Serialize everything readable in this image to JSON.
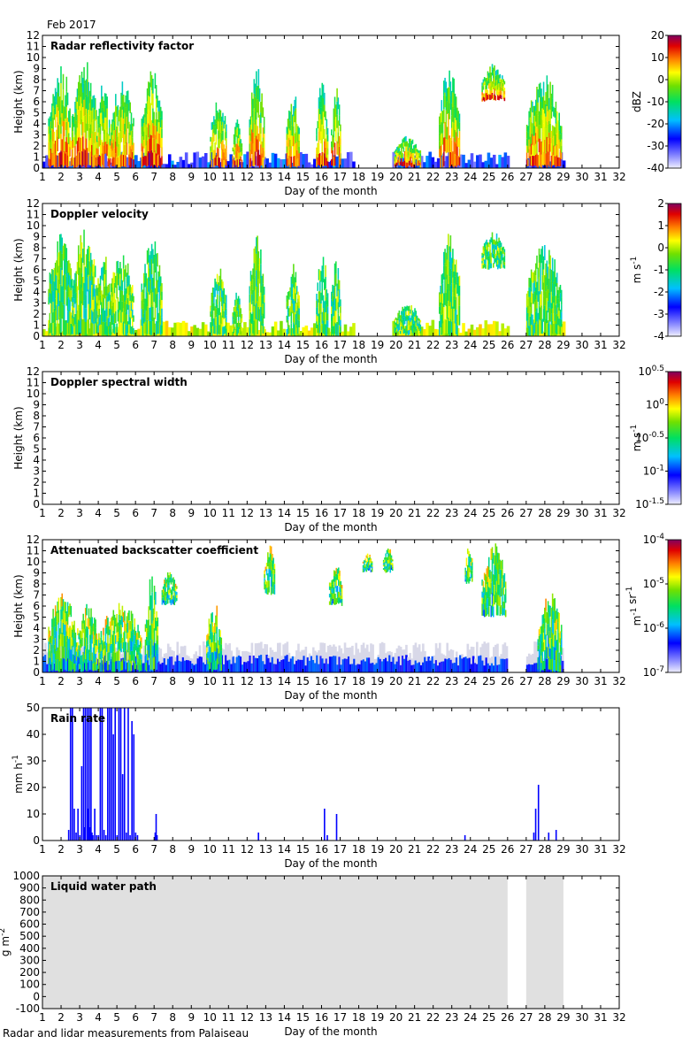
{
  "figure": {
    "header": "Feb 2017",
    "footer": "Radar and lidar measurements from Palaiseau"
  },
  "chart_data": [
    {
      "type": "heatmap",
      "title": "Radar reflectivity factor",
      "xlabel": "Day of the month",
      "ylabel": "Height (km)",
      "xlim": [
        1,
        32
      ],
      "ylim": [
        0,
        12
      ],
      "xticks": [
        "1",
        "2",
        "3",
        "4",
        "5",
        "6",
        "7",
        "8",
        "9",
        "10",
        "11",
        "12",
        "13",
        "14",
        "15",
        "16",
        "17",
        "18",
        "19",
        "20",
        "21",
        "22",
        "23",
        "24",
        "25",
        "26",
        "27",
        "28",
        "29",
        "30",
        "31",
        "32"
      ],
      "yticks": [
        "0",
        "1",
        "2",
        "3",
        "4",
        "5",
        "6",
        "7",
        "8",
        "9",
        "10",
        "11",
        "12"
      ],
      "colorbar": {
        "label": "dBZ",
        "ticks": [
          "20",
          "10",
          "0",
          "-10",
          "-20",
          "-30",
          "-40"
        ],
        "range": [
          -40,
          20
        ]
      },
      "data_coverage_days": [
        [
          1,
          17.7
        ],
        [
          19.8,
          26
        ],
        [
          27,
          29
        ]
      ],
      "cloud_columns": [
        {
          "x": [
            1.3,
            2.6
          ],
          "top": 9.5,
          "base": 0
        },
        {
          "x": [
            2.6,
            3.9
          ],
          "top": 9.8,
          "base": 0
        },
        {
          "x": [
            3.9,
            4.6
          ],
          "top": 8.0,
          "base": 0
        },
        {
          "x": [
            4.6,
            5.9
          ],
          "top": 8.0,
          "base": 0
        },
        {
          "x": [
            6.3,
            7.4
          ],
          "top": 9.2,
          "base": 0
        },
        {
          "x": [
            10.0,
            10.9
          ],
          "top": 6.5,
          "base": 0
        },
        {
          "x": [
            11.2,
            11.7
          ],
          "top": 4.5,
          "base": 0
        },
        {
          "x": [
            12.1,
            12.9
          ],
          "top": 9.2,
          "base": 0
        },
        {
          "x": [
            14.1,
            14.8
          ],
          "top": 7.0,
          "base": 0
        },
        {
          "x": [
            15.7,
            16.3
          ],
          "top": 8.0,
          "base": 0
        },
        {
          "x": [
            16.5,
            17.0
          ],
          "top": 7.5,
          "base": 0
        },
        {
          "x": [
            19.9,
            21.3
          ],
          "top": 3.0,
          "base": 0
        },
        {
          "x": [
            22.3,
            23.4
          ],
          "top": 9.5,
          "base": 0
        },
        {
          "x": [
            24.6,
            25.8
          ],
          "top": 9.5,
          "base": 6.0
        },
        {
          "x": [
            27.0,
            28.9
          ],
          "top": 8.5,
          "base": 0
        }
      ]
    },
    {
      "type": "heatmap",
      "title": "Doppler velocity",
      "xlabel": "Day of the month",
      "ylabel": "Height (km)",
      "xlim": [
        1,
        32
      ],
      "ylim": [
        0,
        12
      ],
      "xticks": [
        "1",
        "2",
        "3",
        "4",
        "5",
        "6",
        "7",
        "8",
        "9",
        "10",
        "11",
        "12",
        "13",
        "14",
        "15",
        "16",
        "17",
        "18",
        "19",
        "20",
        "21",
        "22",
        "23",
        "24",
        "25",
        "26",
        "27",
        "28",
        "29",
        "30",
        "31",
        "32"
      ],
      "yticks": [
        "0",
        "1",
        "2",
        "3",
        "4",
        "5",
        "6",
        "7",
        "8",
        "9",
        "10",
        "11",
        "12"
      ],
      "colorbar": {
        "label": "m s-1",
        "ticks": [
          "2",
          "1",
          "0",
          "-1",
          "-2",
          "-3",
          "-4"
        ],
        "range": [
          -4,
          2
        ]
      },
      "data_coverage_days": [
        [
          1,
          17.7
        ],
        [
          19.8,
          26
        ],
        [
          27,
          29
        ]
      ],
      "cloud_columns": [
        {
          "x": [
            1.3,
            2.6
          ],
          "top": 9.5,
          "base": 0
        },
        {
          "x": [
            2.6,
            3.9
          ],
          "top": 9.8,
          "base": 0
        },
        {
          "x": [
            3.9,
            4.6
          ],
          "top": 8.0,
          "base": 0
        },
        {
          "x": [
            4.6,
            5.9
          ],
          "top": 8.0,
          "base": 0
        },
        {
          "x": [
            6.3,
            7.4
          ],
          "top": 9.2,
          "base": 0
        },
        {
          "x": [
            10.0,
            10.9
          ],
          "top": 6.5,
          "base": 0
        },
        {
          "x": [
            11.2,
            11.7
          ],
          "top": 4.5,
          "base": 0
        },
        {
          "x": [
            12.1,
            12.9
          ],
          "top": 9.2,
          "base": 0
        },
        {
          "x": [
            14.1,
            14.8
          ],
          "top": 7.0,
          "base": 0
        },
        {
          "x": [
            15.7,
            16.3
          ],
          "top": 8.0,
          "base": 0
        },
        {
          "x": [
            16.5,
            17.0
          ],
          "top": 7.5,
          "base": 0
        },
        {
          "x": [
            19.9,
            21.3
          ],
          "top": 3.0,
          "base": 0
        },
        {
          "x": [
            22.3,
            23.4
          ],
          "top": 9.5,
          "base": 0
        },
        {
          "x": [
            24.6,
            25.8
          ],
          "top": 9.5,
          "base": 6.0
        },
        {
          "x": [
            27.0,
            28.9
          ],
          "top": 8.5,
          "base": 0
        }
      ]
    },
    {
      "type": "heatmap",
      "title": "Doppler spectral width",
      "xlabel": "Day of the month",
      "ylabel": "Height (km)",
      "xlim": [
        1,
        32
      ],
      "ylim": [
        0,
        12
      ],
      "xticks": [
        "1",
        "2",
        "3",
        "4",
        "5",
        "6",
        "7",
        "8",
        "9",
        "10",
        "11",
        "12",
        "13",
        "14",
        "15",
        "16",
        "17",
        "18",
        "19",
        "20",
        "21",
        "22",
        "23",
        "24",
        "25",
        "26",
        "27",
        "28",
        "29",
        "30",
        "31",
        "32"
      ],
      "yticks": [
        "0",
        "1",
        "2",
        "3",
        "4",
        "5",
        "6",
        "7",
        "8",
        "9",
        "10",
        "11",
        "12"
      ],
      "colorbar": {
        "label": "m s-1",
        "ticks": [
          "10^0.5",
          "10^0",
          "10^-0.5",
          "10^-1",
          "10^-1.5"
        ],
        "range": [
          -1.5,
          0.5
        ],
        "log": true
      },
      "data_coverage_days": [],
      "cloud_columns": []
    },
    {
      "type": "heatmap",
      "title": "Attenuated backscatter coefficient",
      "xlabel": "Day of the month",
      "ylabel": "Height (km)",
      "xlim": [
        1,
        32
      ],
      "ylim": [
        0,
        12
      ],
      "xticks": [
        "1",
        "2",
        "3",
        "4",
        "5",
        "6",
        "7",
        "8",
        "9",
        "10",
        "11",
        "12",
        "13",
        "14",
        "15",
        "16",
        "17",
        "18",
        "19",
        "20",
        "21",
        "22",
        "23",
        "24",
        "25",
        "26",
        "27",
        "28",
        "29",
        "30",
        "31",
        "32"
      ],
      "yticks": [
        "0",
        "1",
        "2",
        "3",
        "4",
        "5",
        "6",
        "7",
        "8",
        "9",
        "10",
        "11",
        "12"
      ],
      "colorbar": {
        "label": "m-1 sr-1",
        "ticks": [
          "10^-4",
          "10^-5",
          "10^-6",
          "10^-7"
        ],
        "range": [
          -7,
          -4
        ],
        "log": true
      },
      "data_coverage_days": [
        [
          1,
          26
        ],
        [
          27,
          29
        ]
      ],
      "cloud_columns": [
        {
          "x": [
            1.3,
            2.8
          ],
          "top": 7.5,
          "base": 0
        },
        {
          "x": [
            2.8,
            4.0
          ],
          "top": 6.5,
          "base": 0
        },
        {
          "x": [
            4.0,
            6.3
          ],
          "top": 6.5,
          "base": 0
        },
        {
          "x": [
            6.5,
            7.2
          ],
          "top": 9.0,
          "base": 0
        },
        {
          "x": [
            7.4,
            8.2
          ],
          "top": 9.5,
          "base": 6.0
        },
        {
          "x": [
            9.8,
            10.6
          ],
          "top": 6.5,
          "base": 0
        },
        {
          "x": [
            12.9,
            13.5
          ],
          "top": 11.5,
          "base": 7.0
        },
        {
          "x": [
            16.4,
            17.1
          ],
          "top": 10.0,
          "base": 6.0
        },
        {
          "x": [
            18.2,
            18.7
          ],
          "top": 11.0,
          "base": 9.0
        },
        {
          "x": [
            19.3,
            19.8
          ],
          "top": 11.5,
          "base": 9.0
        },
        {
          "x": [
            23.7,
            24.1
          ],
          "top": 11.5,
          "base": 8.0
        },
        {
          "x": [
            24.6,
            25.9
          ],
          "top": 11.8,
          "base": 5.0
        },
        {
          "x": [
            27.6,
            28.9
          ],
          "top": 7.5,
          "base": 0
        }
      ]
    },
    {
      "type": "bar",
      "title": "Rain rate",
      "xlabel": "Day of the month",
      "ylabel": "mm h-1",
      "xlim": [
        1,
        32
      ],
      "ylim": [
        0,
        50
      ],
      "xticks": [
        "1",
        "2",
        "3",
        "4",
        "5",
        "6",
        "7",
        "8",
        "9",
        "10",
        "11",
        "12",
        "13",
        "14",
        "15",
        "16",
        "17",
        "18",
        "19",
        "20",
        "21",
        "22",
        "23",
        "24",
        "25",
        "26",
        "27",
        "28",
        "29",
        "30",
        "31",
        "32"
      ],
      "yticks": [
        "0",
        "10",
        "20",
        "30",
        "40",
        "50"
      ],
      "x": [
        2.4,
        2.5,
        2.6,
        2.7,
        2.8,
        2.9,
        3.0,
        3.1,
        3.2,
        3.25,
        3.3,
        3.4,
        3.45,
        3.5,
        3.55,
        3.6,
        3.65,
        3.7,
        3.8,
        3.9,
        4.0,
        4.1,
        4.2,
        4.3,
        4.4,
        4.5,
        4.6,
        4.7,
        4.8,
        4.9,
        5.0,
        5.1,
        5.2,
        5.3,
        5.4,
        5.5,
        5.6,
        5.7,
        5.8,
        5.9,
        6.0,
        6.1,
        7.05,
        7.1,
        7.15,
        12.6,
        16.15,
        16.3,
        16.8,
        23.7,
        27.4,
        27.5,
        27.65,
        28.2,
        28.6
      ],
      "values": [
        4,
        50,
        50,
        12,
        3,
        12,
        2,
        28,
        50,
        5,
        50,
        50,
        12,
        50,
        5,
        50,
        3,
        2,
        12,
        2,
        2,
        50,
        50,
        4,
        2,
        50,
        50,
        50,
        40,
        50,
        2,
        50,
        50,
        25,
        50,
        3,
        50,
        2,
        45,
        40,
        3,
        2,
        3,
        10,
        2,
        3,
        12,
        2,
        10,
        2,
        3,
        12,
        21,
        3,
        4
      ]
    },
    {
      "type": "area",
      "title": "Liquid water path",
      "xlabel": "Day of the month",
      "ylabel": "g m-2",
      "xlim": [
        1,
        32
      ],
      "ylim": [
        -100,
        1000
      ],
      "xticks": [
        "1",
        "2",
        "3",
        "4",
        "5",
        "6",
        "7",
        "8",
        "9",
        "10",
        "11",
        "12",
        "13",
        "14",
        "15",
        "16",
        "17",
        "18",
        "19",
        "20",
        "21",
        "22",
        "23",
        "24",
        "25",
        "26",
        "27",
        "28",
        "29",
        "30",
        "31",
        "32"
      ],
      "yticks": [
        "-100",
        "0",
        "100",
        "200",
        "300",
        "400",
        "500",
        "600",
        "700",
        "800",
        "900",
        "1000"
      ],
      "data_coverage_days": [
        [
          1,
          26
        ],
        [
          27,
          29
        ]
      ]
    }
  ]
}
